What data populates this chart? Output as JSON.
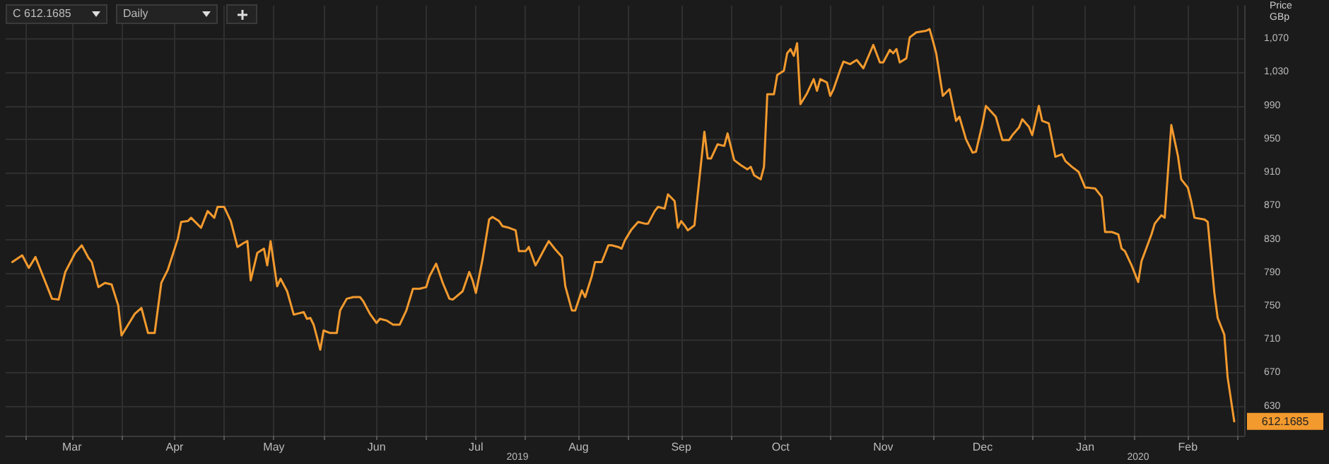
{
  "chart_data": {
    "type": "line",
    "ylabel": "Price GBp",
    "grid": true,
    "marker": "none",
    "line_style": "solid",
    "annotations": [
      "C 612.1685",
      "Daily",
      "2019",
      "2020",
      {
        "text": "612.1685",
        "x": "2020-02-15",
        "y": 612.1685
      }
    ],
    "xlim": [
      "2019-02-09",
      "2020-02-18"
    ],
    "xticks": [
      {
        "value": "2019-02-15",
        "label": null
      },
      {
        "value": "2019-03-01",
        "label": "Mar"
      },
      {
        "value": "2019-03-16",
        "label": null
      },
      {
        "value": "2019-04-01",
        "label": "Apr"
      },
      {
        "value": "2019-04-16",
        "label": null
      },
      {
        "value": "2019-05-01",
        "label": "May"
      },
      {
        "value": "2019-05-16",
        "label": null
      },
      {
        "value": "2019-06-01",
        "label": "Jun"
      },
      {
        "value": "2019-06-16",
        "label": null
      },
      {
        "value": "2019-07-01",
        "label": "Jul"
      },
      {
        "value": "2019-07-16",
        "label": null
      },
      {
        "value": "2019-08-01",
        "label": "Aug"
      },
      {
        "value": "2019-08-16",
        "label": null
      },
      {
        "value": "2019-09-01",
        "label": "Sep"
      },
      {
        "value": "2019-09-16",
        "label": null
      },
      {
        "value": "2019-10-01",
        "label": "Oct"
      },
      {
        "value": "2019-10-16",
        "label": null
      },
      {
        "value": "2019-11-01",
        "label": "Nov"
      },
      {
        "value": "2019-11-16",
        "label": null
      },
      {
        "value": "2019-12-01",
        "label": "Dec"
      },
      {
        "value": "2019-12-16",
        "label": null
      },
      {
        "value": "2020-01-01",
        "label": "Jan"
      },
      {
        "value": "2020-01-16",
        "label": null
      },
      {
        "value": "2020-02-01",
        "label": "Feb"
      },
      {
        "value": "2020-02-16",
        "label": null
      }
    ],
    "ylim": [
      595,
      1110
    ],
    "yticks": [
      630,
      670,
      710,
      750,
      790,
      830,
      870,
      910,
      950,
      990,
      {
        "value": 1030,
        "label": "1,030"
      },
      {
        "value": 1070,
        "label": "1,070"
      }
    ],
    "series": [
      {
        "color": "#f39a2e",
        "x": [
          "2019-02-11",
          "2019-02-14",
          "2019-02-16",
          "2019-02-18",
          "2019-02-20",
          "2019-02-23",
          "2019-02-25",
          "2019-02-27",
          "2019-03-02",
          "2019-03-04",
          "2019-03-06",
          "2019-03-07",
          "2019-03-09",
          "2019-03-11",
          "2019-03-13",
          "2019-03-15",
          "2019-03-16",
          "2019-03-18",
          "2019-03-20",
          "2019-03-22",
          "2019-03-24",
          "2019-03-26",
          "2019-03-28",
          "2019-03-30",
          "2019-04-02",
          "2019-04-03",
          "2019-04-05",
          "2019-04-06",
          "2019-04-07",
          "2019-04-09",
          "2019-04-11",
          "2019-04-13",
          "2019-04-14",
          "2019-04-16",
          "2019-04-18",
          "2019-04-20",
          "2019-04-22",
          "2019-04-23",
          "2019-04-24",
          "2019-04-26",
          "2019-04-28",
          "2019-04-29",
          "2019-04-30",
          "2019-05-02",
          "2019-05-03",
          "2019-05-05",
          "2019-05-07",
          "2019-05-08",
          "2019-05-10",
          "2019-05-11",
          "2019-05-12",
          "2019-05-13",
          "2019-05-15",
          "2019-05-16",
          "2019-05-18",
          "2019-05-20",
          "2019-05-21",
          "2019-05-23",
          "2019-05-25",
          "2019-05-27",
          "2019-05-28",
          "2019-05-30",
          "2019-06-01",
          "2019-06-02",
          "2019-06-04",
          "2019-06-06",
          "2019-06-08",
          "2019-06-10",
          "2019-06-12",
          "2019-06-14",
          "2019-06-16",
          "2019-06-17",
          "2019-06-19",
          "2019-06-21",
          "2019-06-23",
          "2019-06-24",
          "2019-06-27",
          "2019-06-29",
          "2019-06-30",
          "2019-07-01",
          "2019-07-03",
          "2019-07-05",
          "2019-07-06",
          "2019-07-08",
          "2019-07-09",
          "2019-07-11",
          "2019-07-13",
          "2019-07-14",
          "2019-07-16",
          "2019-07-17",
          "2019-07-19",
          "2019-07-20",
          "2019-07-22",
          "2019-07-23",
          "2019-07-25",
          "2019-07-27",
          "2019-07-28",
          "2019-07-30",
          "2019-07-31",
          "2019-08-02",
          "2019-08-03",
          "2019-08-05",
          "2019-08-06",
          "2019-08-08",
          "2019-08-10",
          "2019-08-11",
          "2019-08-13",
          "2019-08-14",
          "2019-08-15",
          "2019-08-17",
          "2019-08-19",
          "2019-08-21",
          "2019-08-22",
          "2019-08-24",
          "2019-08-25",
          "2019-08-27",
          "2019-08-28",
          "2019-08-30",
          "2019-08-31",
          "2019-09-01",
          "2019-09-02",
          "2019-09-03",
          "2019-09-05",
          "2019-09-08",
          "2019-09-09",
          "2019-09-10",
          "2019-09-12",
          "2019-09-14",
          "2019-09-15",
          "2019-09-17",
          "2019-09-19",
          "2019-09-21",
          "2019-09-22",
          "2019-09-23",
          "2019-09-25",
          "2019-09-26",
          "2019-09-27",
          "2019-09-29",
          "2019-09-30",
          "2019-10-02",
          "2019-10-03",
          "2019-10-04",
          "2019-10-05",
          "2019-10-06",
          "2019-10-07",
          "2019-10-09",
          "2019-10-11",
          "2019-10-12",
          "2019-10-13",
          "2019-10-15",
          "2019-10-16",
          "2019-10-17",
          "2019-10-19",
          "2019-10-20",
          "2019-10-22",
          "2019-10-24",
          "2019-10-26",
          "2019-10-29",
          "2019-10-31",
          "2019-11-01",
          "2019-11-03",
          "2019-11-04",
          "2019-11-05",
          "2019-11-06",
          "2019-11-08",
          "2019-11-09",
          "2019-11-11",
          "2019-11-14",
          "2019-11-15",
          "2019-11-16",
          "2019-11-17",
          "2019-11-19",
          "2019-11-21",
          "2019-11-23",
          "2019-11-24",
          "2019-11-26",
          "2019-11-28",
          "2019-11-29",
          "2019-12-01",
          "2019-12-02",
          "2019-12-05",
          "2019-12-07",
          "2019-12-09",
          "2019-12-10",
          "2019-12-12",
          "2019-12-13",
          "2019-12-15",
          "2019-12-16",
          "2019-12-18",
          "2019-12-19",
          "2019-12-21",
          "2019-12-23",
          "2019-12-25",
          "2019-12-26",
          "2019-12-28",
          "2019-12-30",
          "2020-01-01",
          "2020-01-02",
          "2020-01-04",
          "2020-01-06",
          "2020-01-07",
          "2020-01-09",
          "2020-01-11",
          "2020-01-12",
          "2020-01-13",
          "2020-01-15",
          "2020-01-17",
          "2020-01-18",
          "2020-01-21",
          "2020-01-22",
          "2020-01-24",
          "2020-01-25",
          "2020-01-27",
          "2020-01-29",
          "2020-01-30",
          "2020-02-01",
          "2020-02-02",
          "2020-02-03",
          "2020-02-06",
          "2020-02-07",
          "2020-02-09",
          "2020-02-10",
          "2020-02-12",
          "2020-02-13",
          "2020-02-15"
        ],
        "values": [
          803,
          811,
          796,
          809,
          789,
          759,
          758,
          791,
          814,
          823,
          808,
          803,
          773,
          778,
          776,
          751,
          715,
          728,
          741,
          748,
          718,
          718,
          778,
          794,
          831,
          851,
          852,
          856,
          852,
          844,
          864,
          856,
          869,
          869,
          852,
          821,
          826,
          828,
          781,
          814,
          819,
          799,
          828,
          774,
          783,
          768,
          740,
          741,
          743,
          735,
          736,
          728,
          698,
          721,
          718,
          718,
          745,
          759,
          761,
          761,
          756,
          741,
          730,
          735,
          733,
          728,
          728,
          745,
          771,
          771,
          773,
          786,
          801,
          778,
          759,
          758,
          768,
          791,
          781,
          766,
          806,
          854,
          857,
          852,
          846,
          844,
          841,
          816,
          816,
          821,
          799,
          806,
          821,
          828,
          818,
          809,
          774,
          745,
          745,
          769,
          761,
          786,
          803,
          803,
          823,
          823,
          821,
          819,
          829,
          842,
          851,
          849,
          849,
          864,
          869,
          867,
          884,
          876,
          844,
          852,
          847,
          841,
          847,
          959,
          927,
          927,
          944,
          942,
          957,
          925,
          919,
          914,
          917,
          907,
          902,
          917,
          1004,
          1004,
          1027,
          1032,
          1053,
          1058,
          1050,
          1065,
          992,
          1005,
          1022,
          1008,
          1022,
          1018,
          1002,
          1010,
          1033,
          1043,
          1040,
          1045,
          1035,
          1063,
          1042,
          1042,
          1057,
          1053,
          1058,
          1042,
          1047,
          1072,
          1078,
          1080,
          1082,
          1068,
          1053,
          1002,
          1010,
          972,
          977,
          950,
          934,
          935,
          969,
          990,
          977,
          949,
          949,
          955,
          964,
          974,
          965,
          955,
          990,
          972,
          969,
          929,
          932,
          924,
          917,
          911,
          892,
          892,
          891,
          881,
          839,
          839,
          836,
          819,
          816,
          799,
          779,
          804,
          836,
          849,
          859,
          856,
          967,
          930,
          902,
          892,
          876,
          856,
          854,
          851,
          766,
          736,
          716,
          665,
          612.1685
        ]
      }
    ]
  }
}
